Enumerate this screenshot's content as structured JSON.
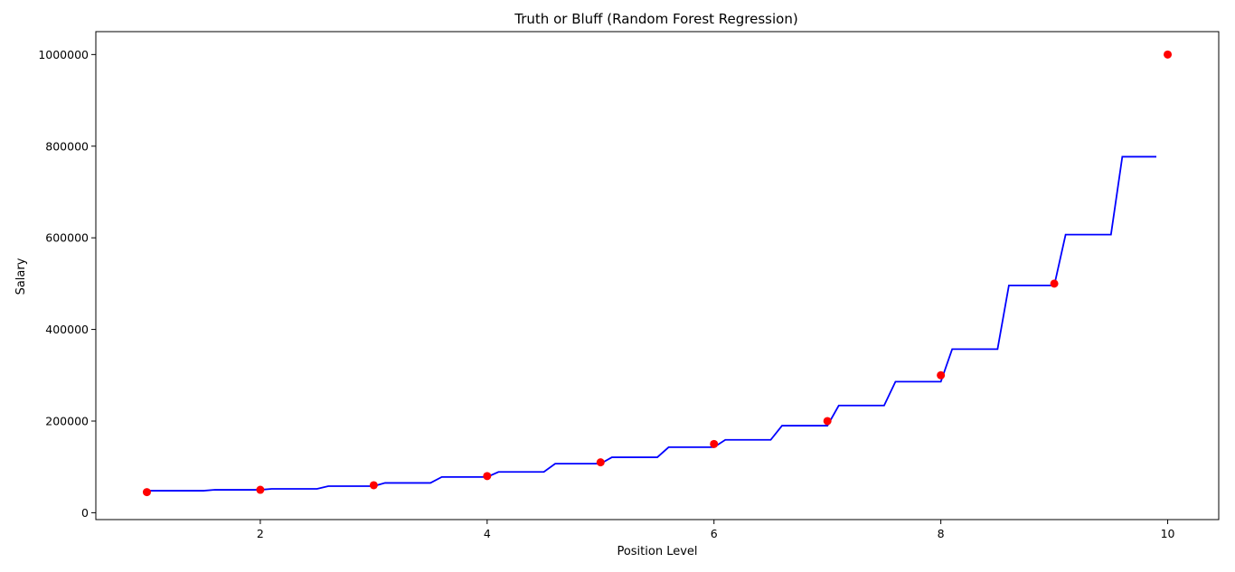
{
  "chart_data": {
    "type": "scatter",
    "title": "Truth or Bluff (Random Forest Regression)",
    "xlabel": "Position Level",
    "ylabel": "Salary",
    "xlim": [
      0.55,
      10.45
    ],
    "ylim": [
      -15000,
      1050000
    ],
    "xticks": [
      2,
      4,
      6,
      8,
      10
    ],
    "yticks": [
      0,
      200000,
      400000,
      600000,
      800000,
      1000000
    ],
    "grid": false,
    "legend": "none",
    "series": [
      {
        "kind": "scatter",
        "color": "#ff0000",
        "points": [
          [
            1,
            45000
          ],
          [
            2,
            50000
          ],
          [
            3,
            60000
          ],
          [
            4,
            80000
          ],
          [
            5,
            110000
          ],
          [
            6,
            150000
          ],
          [
            7,
            200000
          ],
          [
            8,
            300000
          ],
          [
            9,
            500000
          ],
          [
            10,
            1000000
          ]
        ]
      },
      {
        "kind": "line",
        "color": "#0000ff",
        "x": [
          1.0,
          1.1,
          1.2,
          1.3,
          1.4,
          1.5,
          1.6,
          1.7,
          1.8,
          1.9,
          2.0,
          2.1,
          2.2,
          2.3,
          2.4,
          2.5,
          2.6,
          2.7,
          2.8,
          2.9,
          3.0,
          3.1,
          3.2,
          3.3,
          3.4,
          3.5,
          3.6,
          3.7,
          3.8,
          3.9,
          4.0,
          4.1,
          4.2,
          4.3,
          4.4,
          4.5,
          4.6,
          4.7,
          4.8,
          4.9,
          5.0,
          5.1,
          5.2,
          5.3,
          5.4,
          5.5,
          5.6,
          5.7,
          5.8,
          5.9,
          6.0,
          6.1,
          6.2,
          6.3,
          6.4,
          6.5,
          6.6,
          6.7,
          6.8,
          6.9,
          7.0,
          7.1,
          7.2,
          7.3,
          7.4,
          7.5,
          7.6,
          7.7,
          7.8,
          7.9,
          8.0,
          8.1,
          8.2,
          8.3,
          8.4,
          8.5,
          8.6,
          8.7,
          8.8,
          8.9,
          9.0,
          9.1,
          9.2,
          9.3,
          9.4,
          9.5,
          9.6,
          9.7,
          9.8,
          9.9
        ],
        "y": [
          48000,
          48000,
          48000,
          48000,
          48000,
          48000,
          50000,
          50000,
          50000,
          50000,
          50000,
          52000,
          52000,
          52000,
          52000,
          52000,
          58000,
          58000,
          58000,
          58000,
          58000,
          65000,
          65000,
          65000,
          65000,
          65000,
          78000,
          78000,
          78000,
          78000,
          78000,
          89000,
          89000,
          89000,
          89000,
          89000,
          107000,
          107000,
          107000,
          107000,
          107000,
          121000,
          121000,
          121000,
          121000,
          121000,
          143000,
          143000,
          143000,
          143000,
          143000,
          159000,
          159000,
          159000,
          159000,
          159000,
          190000,
          190000,
          190000,
          190000,
          190000,
          234000,
          234000,
          234000,
          234000,
          234000,
          286000,
          286000,
          286000,
          286000,
          286000,
          357000,
          357000,
          357000,
          357000,
          357000,
          496000,
          496000,
          496000,
          496000,
          496000,
          607000,
          607000,
          607000,
          607000,
          607000,
          777000,
          777000,
          777000,
          777000
        ]
      }
    ]
  }
}
